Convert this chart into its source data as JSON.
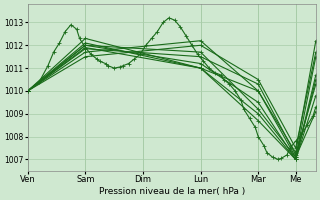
{
  "background_color": "#cfe8d0",
  "grid_color": "#a8cca8",
  "line_color": "#1a6b1a",
  "xlabel": "Pression niveau de la mer( hPa )",
  "ylim": [
    1006.5,
    1013.8
  ],
  "yticks": [
    1007,
    1008,
    1009,
    1010,
    1011,
    1012,
    1013
  ],
  "day_labels": [
    "Ven",
    "Sam",
    "Dim",
    "Lun",
    "Mar",
    "Me"
  ],
  "day_positions": [
    0.0,
    0.2,
    0.4,
    0.6,
    0.8,
    0.93
  ],
  "n_days": 6,
  "marker": "+",
  "marker_size": 2.5,
  "line_width": 0.8,
  "detail_line": {
    "x": [
      0.0,
      0.04,
      0.07,
      0.09,
      0.11,
      0.13,
      0.15,
      0.17,
      0.18,
      0.2,
      0.22,
      0.24,
      0.25,
      0.27,
      0.28,
      0.3,
      0.32,
      0.33,
      0.35,
      0.37,
      0.39,
      0.41,
      0.43,
      0.45,
      0.47,
      0.49,
      0.51,
      0.53,
      0.55,
      0.57,
      0.59,
      0.61,
      0.63,
      0.65,
      0.67,
      0.68,
      0.7,
      0.72,
      0.74,
      0.75,
      0.77,
      0.79,
      0.8,
      0.82,
      0.83,
      0.85,
      0.87,
      0.88,
      0.9,
      0.91,
      0.93,
      0.95,
      0.97,
      0.99,
      1.0
    ],
    "y": [
      1010.0,
      1010.4,
      1011.1,
      1011.7,
      1012.1,
      1012.6,
      1012.9,
      1012.7,
      1012.3,
      1011.9,
      1011.6,
      1011.4,
      1011.3,
      1011.2,
      1011.1,
      1011.0,
      1011.05,
      1011.1,
      1011.2,
      1011.4,
      1011.6,
      1012.0,
      1012.3,
      1012.6,
      1013.0,
      1013.2,
      1013.1,
      1012.8,
      1012.4,
      1012.0,
      1011.6,
      1011.3,
      1011.0,
      1010.8,
      1010.7,
      1010.5,
      1010.3,
      1010.0,
      1009.6,
      1009.2,
      1008.8,
      1008.4,
      1008.0,
      1007.6,
      1007.3,
      1007.1,
      1007.0,
      1007.05,
      1007.2,
      1007.5,
      1007.8,
      1008.1,
      1008.5,
      1008.9,
      1009.3
    ]
  },
  "straight_lines": [
    {
      "x": [
        0.0,
        0.2,
        0.6,
        0.8,
        0.93,
        1.0
      ],
      "y": [
        1010.0,
        1011.9,
        1011.0,
        1010.0,
        1007.1,
        1009.1
      ]
    },
    {
      "x": [
        0.0,
        0.2,
        0.6,
        0.8,
        0.93,
        1.0
      ],
      "y": [
        1010.0,
        1012.0,
        1011.2,
        1009.5,
        1007.0,
        1009.8
      ]
    },
    {
      "x": [
        0.0,
        0.2,
        0.6,
        0.8,
        0.93,
        1.0
      ],
      "y": [
        1010.0,
        1011.85,
        1011.5,
        1010.3,
        1007.2,
        1010.3
      ]
    },
    {
      "x": [
        0.0,
        0.2,
        0.6,
        0.8,
        0.93,
        1.0
      ],
      "y": [
        1010.0,
        1012.3,
        1011.0,
        1009.0,
        1007.0,
        1010.5
      ]
    },
    {
      "x": [
        0.0,
        0.2,
        0.6,
        0.8,
        0.93,
        1.0
      ],
      "y": [
        1010.0,
        1012.1,
        1011.0,
        1008.7,
        1007.0,
        1010.7
      ]
    },
    {
      "x": [
        0.0,
        0.2,
        0.6,
        0.8,
        0.93,
        1.0
      ],
      "y": [
        1010.0,
        1012.0,
        1011.7,
        1009.2,
        1007.1,
        1011.5
      ]
    },
    {
      "x": [
        0.0,
        0.2,
        0.6,
        0.8,
        0.93,
        1.0
      ],
      "y": [
        1010.0,
        1011.7,
        1012.2,
        1010.0,
        1007.3,
        1012.2
      ]
    },
    {
      "x": [
        0.0,
        0.2,
        0.6,
        0.8,
        0.93,
        1.0
      ],
      "y": [
        1010.0,
        1011.5,
        1012.0,
        1010.5,
        1007.5,
        1011.7
      ]
    }
  ]
}
